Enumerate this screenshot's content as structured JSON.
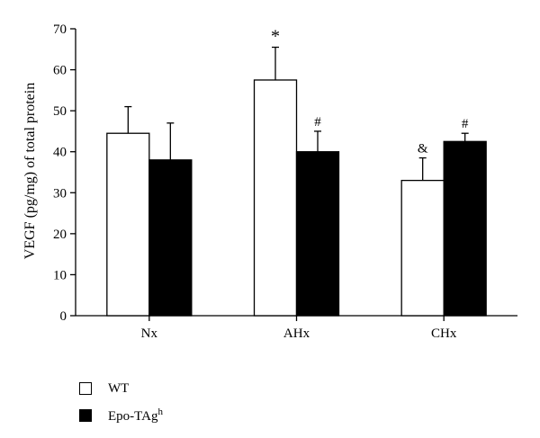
{
  "chart_data": {
    "type": "bar",
    "ylabel": "VEGF (pg/mg) of total protein",
    "ylim": [
      0,
      70
    ],
    "yticks": [
      0,
      10,
      20,
      30,
      40,
      50,
      60,
      70
    ],
    "categories": [
      "Nx",
      "AHx",
      "CHx"
    ],
    "series": [
      {
        "name": "WT",
        "color": "#ffffff",
        "values": [
          44.5,
          57.5,
          33
        ],
        "errors": [
          6.5,
          8,
          5.5
        ],
        "annotations": [
          "",
          "*",
          "&"
        ]
      },
      {
        "name": "Epo-TAg",
        "name_sup": "h",
        "color": "#000000",
        "values": [
          38,
          40,
          42.5
        ],
        "errors": [
          9,
          5,
          2
        ],
        "annotations": [
          "",
          "#",
          "#"
        ]
      }
    ],
    "grid": false,
    "legend": "bottom-left"
  }
}
